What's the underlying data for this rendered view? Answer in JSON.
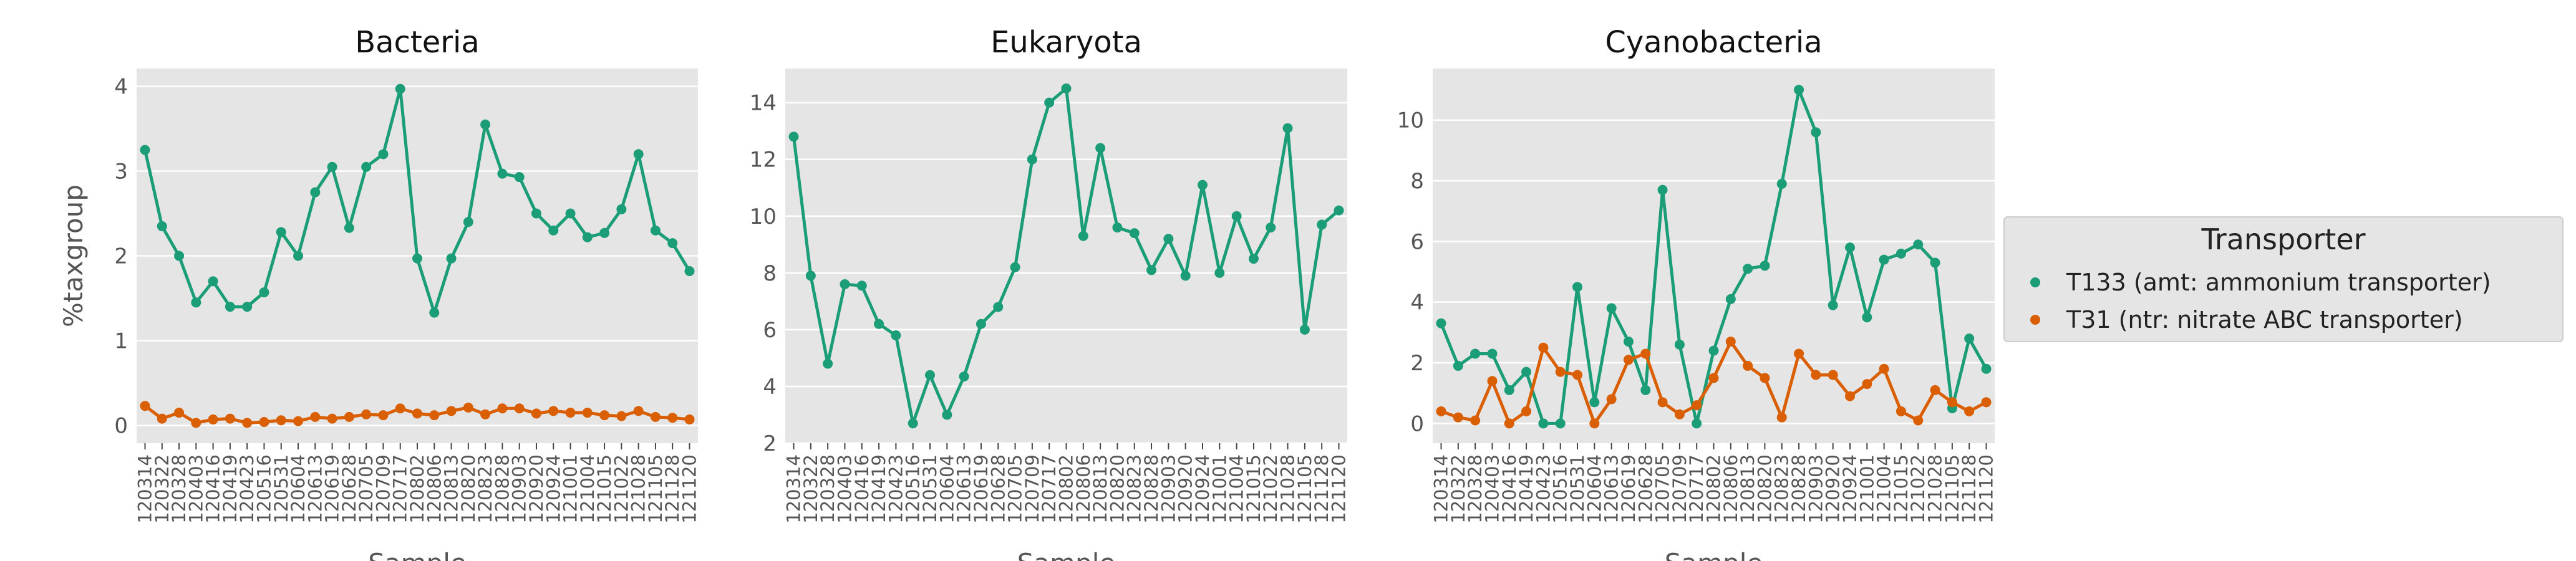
{
  "chart_data": [
    {
      "type": "line",
      "title": "Bacteria",
      "x_label": "Sample",
      "y_label": "%taxgroup",
      "categories": [
        "120314",
        "120322",
        "120328",
        "120403",
        "120416",
        "120419",
        "120423",
        "120516",
        "120531",
        "120604",
        "120613",
        "120619",
        "120628",
        "120705",
        "120709",
        "120717",
        "120802",
        "120806",
        "120813",
        "120820",
        "120823",
        "120828",
        "120903",
        "120920",
        "120924",
        "121001",
        "121004",
        "121015",
        "121022",
        "121028",
        "121105",
        "121128",
        "121120"
      ],
      "ylim": [
        -0.21,
        4.21
      ],
      "yticks": [
        0,
        1,
        2,
        3,
        4
      ],
      "grid": true,
      "series": [
        {
          "color": "#1b9e77",
          "values": [
            3.25,
            2.35,
            2.0,
            1.45,
            1.7,
            1.4,
            1.4,
            1.57,
            2.28,
            2.0,
            2.75,
            3.05,
            2.33,
            3.05,
            3.2,
            3.97,
            1.97,
            1.33,
            1.97,
            2.4,
            3.55,
            2.97,
            2.93,
            2.5,
            2.3,
            2.5,
            2.22,
            2.27,
            2.55,
            3.2,
            2.3,
            2.15,
            1.82
          ]
        },
        {
          "color": "#d95f02",
          "values": [
            0.23,
            0.08,
            0.15,
            0.03,
            0.07,
            0.08,
            0.03,
            0.04,
            0.06,
            0.05,
            0.1,
            0.08,
            0.1,
            0.13,
            0.12,
            0.2,
            0.14,
            0.12,
            0.17,
            0.21,
            0.13,
            0.2,
            0.2,
            0.14,
            0.17,
            0.15,
            0.15,
            0.12,
            0.11,
            0.17,
            0.1,
            0.09,
            0.07
          ]
        }
      ]
    },
    {
      "type": "line",
      "title": "Eukaryota",
      "x_label": "Sample",
      "categories": [
        "120314",
        "120322",
        "120328",
        "120403",
        "120416",
        "120419",
        "120423",
        "120516",
        "120531",
        "120604",
        "120613",
        "120619",
        "120628",
        "120705",
        "120709",
        "120717",
        "120802",
        "120806",
        "120813",
        "120820",
        "120823",
        "120828",
        "120903",
        "120920",
        "120924",
        "121001",
        "121004",
        "121015",
        "121022",
        "121028",
        "121105",
        "121128",
        "121120"
      ],
      "ylim": [
        2,
        15.2
      ],
      "yticks": [
        2,
        4,
        6,
        8,
        10,
        12,
        14
      ],
      "grid": true,
      "series": [
        {
          "color": "#1b9e77",
          "values": [
            12.8,
            7.9,
            4.8,
            7.6,
            7.55,
            6.2,
            5.8,
            2.7,
            4.4,
            3.0,
            4.35,
            6.2,
            6.8,
            8.2,
            12.0,
            14.0,
            14.5,
            9.3,
            12.4,
            9.6,
            9.4,
            8.1,
            9.2,
            7.9,
            11.1,
            8.0,
            10.0,
            8.5,
            9.6,
            13.1,
            6.0,
            9.7,
            10.2
          ]
        }
      ]
    },
    {
      "type": "line",
      "title": "Cyanobacteria",
      "x_label": "Sample",
      "categories": [
        "120314",
        "120322",
        "120328",
        "120403",
        "120416",
        "120419",
        "120423",
        "120516",
        "120531",
        "120604",
        "120613",
        "120619",
        "120628",
        "120705",
        "120709",
        "120717",
        "120802",
        "120806",
        "120813",
        "120820",
        "120823",
        "120828",
        "120903",
        "120920",
        "120924",
        "121001",
        "121004",
        "121015",
        "121022",
        "121028",
        "121105",
        "121128",
        "121120"
      ],
      "ylim": [
        -0.65,
        11.7
      ],
      "yticks": [
        0,
        2,
        4,
        6,
        8,
        10
      ],
      "grid": true,
      "legend": {
        "title": "Transporter",
        "position": "right"
      },
      "series": [
        {
          "name": "T133 (amt: ammonium transporter)",
          "color": "#1b9e77",
          "values": [
            3.3,
            1.9,
            2.3,
            2.3,
            1.1,
            1.7,
            0.0,
            0.0,
            4.5,
            0.7,
            3.8,
            2.7,
            1.1,
            7.7,
            2.6,
            0.0,
            2.4,
            4.1,
            5.1,
            5.2,
            7.9,
            11.0,
            9.6,
            3.9,
            5.8,
            3.5,
            5.4,
            5.6,
            5.9,
            5.3,
            0.5,
            2.8,
            1.8
          ]
        },
        {
          "name": "T31 (ntr: nitrate ABC transporter)",
          "color": "#d95f02",
          "values": [
            0.4,
            0.2,
            0.1,
            1.4,
            0.0,
            0.4,
            2.5,
            1.7,
            1.6,
            0.0,
            0.8,
            2.1,
            2.3,
            0.7,
            0.3,
            0.6,
            1.5,
            2.7,
            1.9,
            1.5,
            0.2,
            2.3,
            1.6,
            1.6,
            0.9,
            1.3,
            1.8,
            0.4,
            0.1,
            1.1,
            0.7,
            0.4,
            0.7
          ]
        }
      ]
    }
  ]
}
